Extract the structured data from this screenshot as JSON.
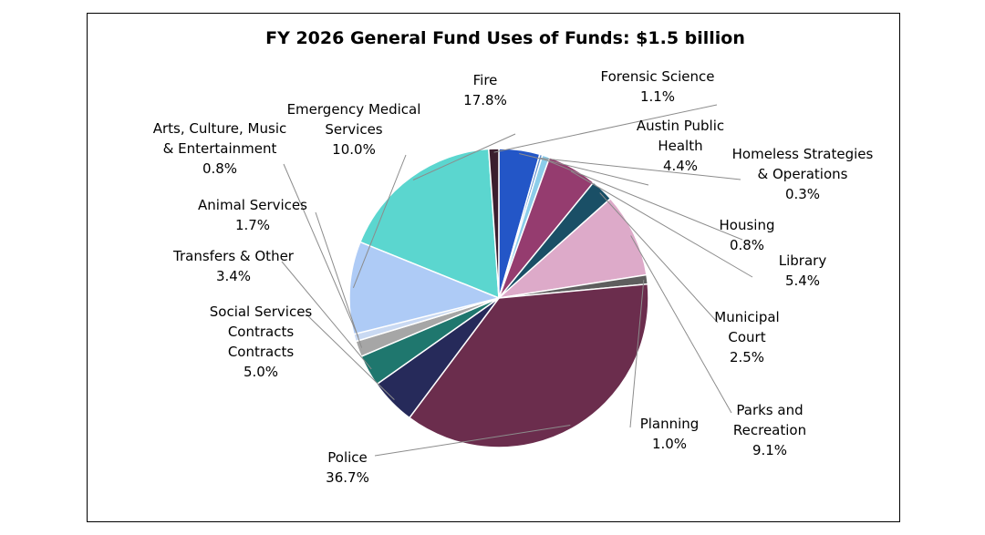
{
  "chart_data": {
    "type": "pie",
    "title": "FY 2026 General Fund Uses of Funds: $1.5 billion",
    "slices": [
      {
        "lines": [
          "Fire",
          "17.8%"
        ],
        "value": 17.8,
        "color": "#5bd6cf"
      },
      {
        "lines": [
          "Forensic Science",
          "1.1%"
        ],
        "value": 1.1,
        "color": "#3b1e2e"
      },
      {
        "lines": [
          "Austin Public",
          "Health",
          "4.4%"
        ],
        "value": 4.4,
        "color": "#2356c7"
      },
      {
        "lines": [
          "Homeless Strategies",
          "& Operations",
          "0.3%"
        ],
        "value": 0.3,
        "color": "#5f8fcc"
      },
      {
        "lines": [
          "Housing",
          "0.8%"
        ],
        "value": 0.8,
        "color": "#8ccdea"
      },
      {
        "lines": [
          "Library",
          "5.4%"
        ],
        "value": 5.4,
        "color": "#953c6f"
      },
      {
        "lines": [
          "Municipal",
          "Court",
          "2.5%"
        ],
        "value": 2.5,
        "color": "#1a4f66"
      },
      {
        "lines": [
          "Parks and",
          "Recreation",
          "9.1%"
        ],
        "value": 9.1,
        "color": "#ddaac9"
      },
      {
        "lines": [
          "Planning",
          "1.0%"
        ],
        "value": 1.0,
        "color": "#5e5e5e"
      },
      {
        "lines": [
          "Police",
          "36.7%"
        ],
        "value": 36.7,
        "color": "#6b2d4d"
      },
      {
        "lines": [
          "Social Services",
          "Contracts",
          "Contracts",
          "5.0%"
        ],
        "value": 5.0,
        "color": "#262a5a"
      },
      {
        "lines": [
          "Transfers & Other",
          "3.4%"
        ],
        "value": 3.4,
        "color": "#1f776e"
      },
      {
        "lines": [
          "Animal Services",
          "1.7%"
        ],
        "value": 1.7,
        "color": "#a6a6a6"
      },
      {
        "lines": [
          "Arts, Culture, Music",
          "& Entertainment",
          "0.8%"
        ],
        "value": 0.8,
        "color": "#c9d9f2"
      },
      {
        "lines": [
          "Emergency Medical",
          "Services",
          "10.0%"
        ],
        "value": 10.0,
        "color": "#aecbf6"
      }
    ]
  }
}
